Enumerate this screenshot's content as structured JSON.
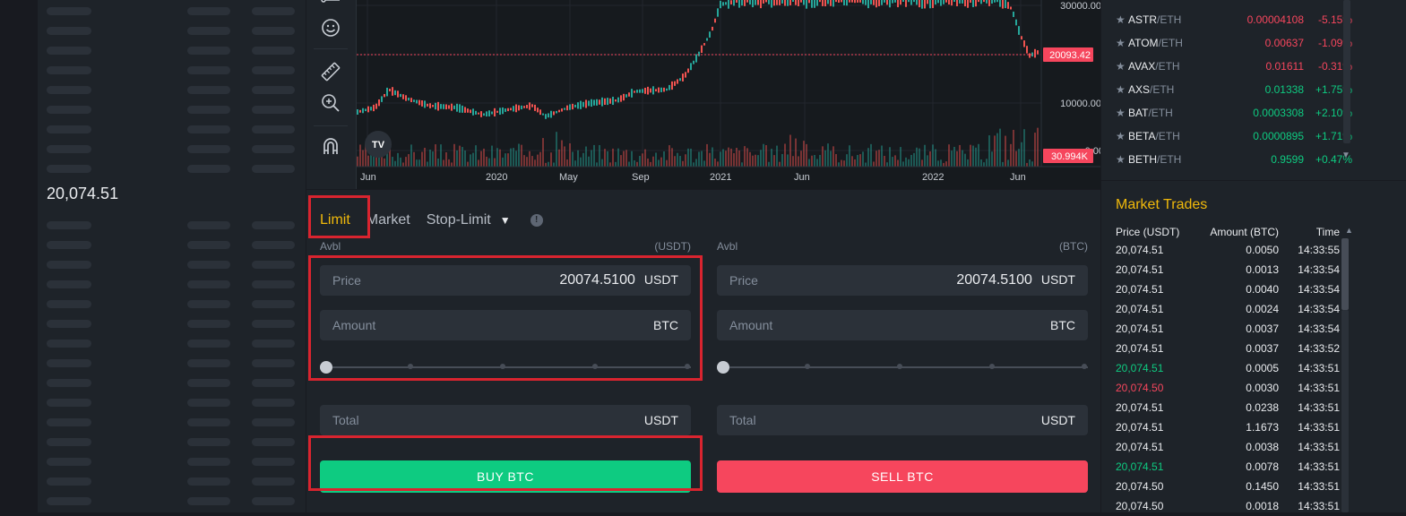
{
  "orderbook": {
    "last_price": "20,074.51"
  },
  "chart": {
    "y_ticks": [
      "30000.00",
      "10000.00",
      "0.00"
    ],
    "x_ticks": [
      "Jun",
      "2020",
      "May",
      "Sep",
      "2021",
      "Jun",
      "2022",
      "Jun"
    ],
    "current_price_label": "20093.42",
    "volume_label": "30.994K",
    "logo": "TV",
    "colors": {
      "up": "#26a69a",
      "down": "#ef5350",
      "price_line": "#f6465d"
    }
  },
  "order_form": {
    "tabs": [
      "Limit",
      "Market",
      "Stop-Limit"
    ],
    "active_tab": "Limit",
    "buy": {
      "avbl_label": "Avbl",
      "avbl_unit": "(USDT)",
      "price_label": "Price",
      "price_value": "20074.5100",
      "price_unit": "USDT",
      "amount_label": "Amount",
      "amount_unit": "BTC",
      "total_label": "Total",
      "total_unit": "USDT",
      "button": "BUY BTC",
      "slider_percent": 0
    },
    "sell": {
      "avbl_label": "Avbl",
      "avbl_unit": "(BTC)",
      "price_label": "Price",
      "price_value": "20074.5100",
      "price_unit": "USDT",
      "amount_label": "Amount",
      "amount_unit": "BTC",
      "total_label": "Total",
      "total_unit": "USDT",
      "button": "SELL BTC",
      "slider_percent": 0
    }
  },
  "markets": [
    {
      "base": "ASTR",
      "quote": "/ETH",
      "price": "0.00004108",
      "change": "-5.15%",
      "dir": "down"
    },
    {
      "base": "ATOM",
      "quote": "/ETH",
      "price": "0.00637",
      "change": "-1.09%",
      "dir": "down"
    },
    {
      "base": "AVAX",
      "quote": "/ETH",
      "price": "0.01611",
      "change": "-0.31%",
      "dir": "down"
    },
    {
      "base": "AXS",
      "quote": "/ETH",
      "price": "0.01338",
      "change": "+1.75%",
      "dir": "up"
    },
    {
      "base": "BAT",
      "quote": "/ETH",
      "price": "0.0003308",
      "change": "+2.10%",
      "dir": "up"
    },
    {
      "base": "BETA",
      "quote": "/ETH",
      "price": "0.0000895",
      "change": "+1.71%",
      "dir": "up"
    },
    {
      "base": "BETH",
      "quote": "/ETH",
      "price": "0.9599",
      "change": "+0.47%",
      "dir": "up"
    }
  ],
  "market_trades": {
    "title": "Market Trades",
    "headers": [
      "Price (USDT)",
      "Amount (BTC)",
      "Time"
    ],
    "rows": [
      {
        "price": "20,074.51",
        "amount": "0.0050",
        "time": "14:33:55",
        "dir": "neutral"
      },
      {
        "price": "20,074.51",
        "amount": "0.0013",
        "time": "14:33:54",
        "dir": "neutral"
      },
      {
        "price": "20,074.51",
        "amount": "0.0040",
        "time": "14:33:54",
        "dir": "neutral"
      },
      {
        "price": "20,074.51",
        "amount": "0.0024",
        "time": "14:33:54",
        "dir": "neutral"
      },
      {
        "price": "20,074.51",
        "amount": "0.0037",
        "time": "14:33:54",
        "dir": "neutral"
      },
      {
        "price": "20,074.51",
        "amount": "0.0037",
        "time": "14:33:52",
        "dir": "neutral"
      },
      {
        "price": "20,074.51",
        "amount": "0.0005",
        "time": "14:33:51",
        "dir": "up"
      },
      {
        "price": "20,074.50",
        "amount": "0.0030",
        "time": "14:33:51",
        "dir": "down"
      },
      {
        "price": "20,074.51",
        "amount": "0.0238",
        "time": "14:33:51",
        "dir": "neutral"
      },
      {
        "price": "20,074.51",
        "amount": "1.1673",
        "time": "14:33:51",
        "dir": "neutral"
      },
      {
        "price": "20,074.51",
        "amount": "0.0038",
        "time": "14:33:51",
        "dir": "neutral"
      },
      {
        "price": "20,074.51",
        "amount": "0.0078",
        "time": "14:33:51",
        "dir": "up"
      },
      {
        "price": "20,074.50",
        "amount": "0.1450",
        "time": "14:33:51",
        "dir": "neutral"
      },
      {
        "price": "20,074.50",
        "amount": "0.0018",
        "time": "14:33:51",
        "dir": "neutral"
      }
    ]
  }
}
